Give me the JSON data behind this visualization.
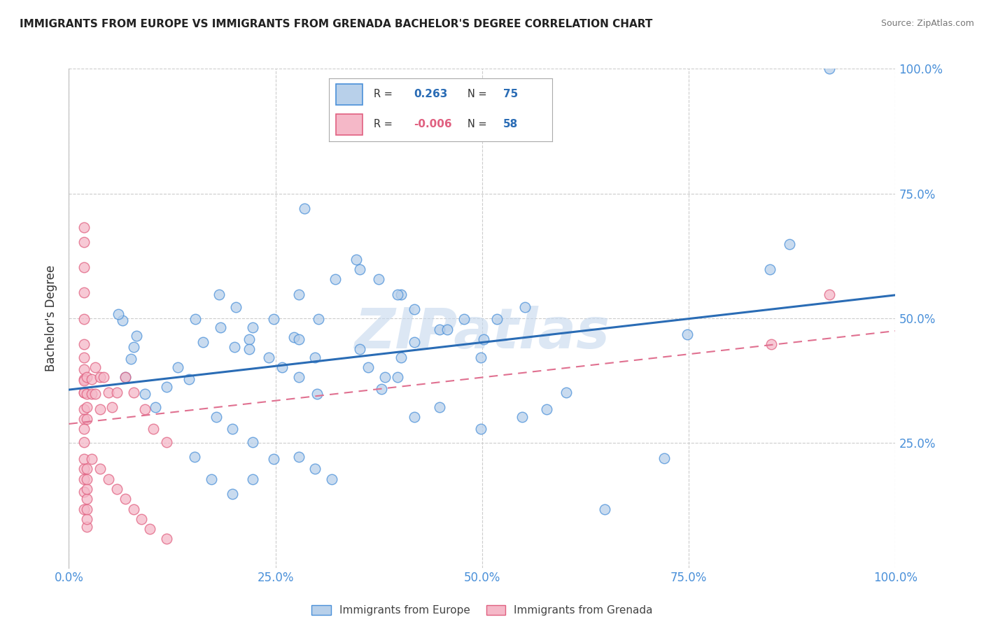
{
  "title": "IMMIGRANTS FROM EUROPE VS IMMIGRANTS FROM GRENADA BACHELOR'S DEGREE CORRELATION CHART",
  "source": "Source: ZipAtlas.com",
  "ylabel": "Bachelor's Degree",
  "xlim": [
    0.0,
    1.0
  ],
  "ylim": [
    0.0,
    1.0
  ],
  "xtick_vals": [
    0.0,
    0.25,
    0.5,
    0.75,
    1.0
  ],
  "xtick_labels": [
    "0.0%",
    "25.0%",
    "50.0%",
    "75.0%",
    "100.0%"
  ],
  "ytick_vals": [
    0.25,
    0.5,
    0.75,
    1.0
  ],
  "ytick_labels": [
    "25.0%",
    "50.0%",
    "75.0%",
    "100.0%"
  ],
  "blue_fill": "#b8d0ea",
  "blue_edge": "#4a90d9",
  "pink_fill": "#f5b8c8",
  "pink_edge": "#e06080",
  "blue_line": "#2a6cb5",
  "pink_line": "#e07090",
  "grid_color": "#cccccc",
  "R_blue": 0.263,
  "N_blue": 75,
  "R_pink": -0.006,
  "N_pink": 58,
  "watermark": "ZIPatlas",
  "blue_x": [
    0.285,
    0.92,
    0.72,
    0.065,
    0.075,
    0.06,
    0.082,
    0.078,
    0.068,
    0.092,
    0.105,
    0.118,
    0.132,
    0.145,
    0.153,
    0.162,
    0.183,
    0.2,
    0.218,
    0.242,
    0.258,
    0.278,
    0.3,
    0.182,
    0.202,
    0.222,
    0.218,
    0.248,
    0.272,
    0.298,
    0.352,
    0.362,
    0.382,
    0.402,
    0.418,
    0.448,
    0.478,
    0.498,
    0.502,
    0.518,
    0.552,
    0.378,
    0.398,
    0.418,
    0.448,
    0.498,
    0.548,
    0.578,
    0.602,
    0.348,
    0.375,
    0.402,
    0.178,
    0.198,
    0.222,
    0.278,
    0.298,
    0.318,
    0.152,
    0.172,
    0.198,
    0.222,
    0.248,
    0.278,
    0.302,
    0.278,
    0.322,
    0.352,
    0.398,
    0.418,
    0.458,
    0.848,
    0.872,
    0.748,
    0.648
  ],
  "blue_y": [
    0.72,
    1.0,
    0.22,
    0.495,
    0.418,
    0.508,
    0.465,
    0.442,
    0.382,
    0.348,
    0.322,
    0.362,
    0.402,
    0.378,
    0.498,
    0.452,
    0.482,
    0.442,
    0.458,
    0.422,
    0.402,
    0.382,
    0.348,
    0.548,
    0.522,
    0.482,
    0.438,
    0.498,
    0.462,
    0.422,
    0.438,
    0.402,
    0.382,
    0.422,
    0.452,
    0.478,
    0.498,
    0.422,
    0.458,
    0.498,
    0.522,
    0.358,
    0.382,
    0.302,
    0.322,
    0.278,
    0.302,
    0.318,
    0.352,
    0.618,
    0.578,
    0.548,
    0.302,
    0.278,
    0.252,
    0.222,
    0.198,
    0.178,
    0.222,
    0.178,
    0.148,
    0.178,
    0.218,
    0.458,
    0.498,
    0.548,
    0.578,
    0.598,
    0.548,
    0.518,
    0.478,
    0.598,
    0.648,
    0.468,
    0.118
  ],
  "pink_x": [
    0.018,
    0.018,
    0.018,
    0.018,
    0.018,
    0.018,
    0.018,
    0.018,
    0.018,
    0.018,
    0.018,
    0.018,
    0.018,
    0.018,
    0.018,
    0.018,
    0.018,
    0.018,
    0.018,
    0.018,
    0.018,
    0.022,
    0.022,
    0.022,
    0.022,
    0.028,
    0.028,
    0.032,
    0.032,
    0.038,
    0.038,
    0.042,
    0.048,
    0.052,
    0.058,
    0.068,
    0.078,
    0.092,
    0.102,
    0.118,
    0.022,
    0.022,
    0.022,
    0.022,
    0.022,
    0.022,
    0.022,
    0.028,
    0.038,
    0.048,
    0.058,
    0.068,
    0.078,
    0.088,
    0.098,
    0.118,
    0.92,
    0.85
  ],
  "pink_y": [
    0.682,
    0.652,
    0.602,
    0.552,
    0.498,
    0.448,
    0.422,
    0.398,
    0.378,
    0.352,
    0.318,
    0.298,
    0.278,
    0.252,
    0.218,
    0.198,
    0.178,
    0.152,
    0.118,
    0.375,
    0.352,
    0.382,
    0.348,
    0.322,
    0.298,
    0.378,
    0.348,
    0.402,
    0.348,
    0.382,
    0.318,
    0.382,
    0.352,
    0.322,
    0.352,
    0.382,
    0.352,
    0.318,
    0.278,
    0.252,
    0.082,
    0.098,
    0.118,
    0.138,
    0.158,
    0.178,
    0.198,
    0.218,
    0.198,
    0.178,
    0.158,
    0.138,
    0.118,
    0.098,
    0.078,
    0.058,
    0.548,
    0.448
  ]
}
